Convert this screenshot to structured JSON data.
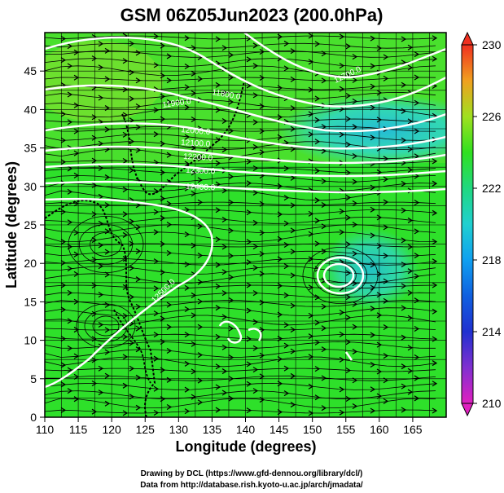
{
  "title": "GSM 06Z05Jun2023 (200.0hPa)",
  "xlabel": "Longitude (degrees)",
  "ylabel": "Latitude (degrees)",
  "credits": [
    "Drawing by DCL (https://www.gfd-dennou.org/library/dcl/)",
    "Data from http://database.rish.kyoto-u.ac.jp/arch/jmadata/"
  ],
  "map": {
    "lon_range": [
      110,
      170
    ],
    "lat_range": [
      0,
      50
    ],
    "lon_ticks": [
      "110",
      "115",
      "120",
      "125",
      "130",
      "135",
      "140",
      "145",
      "150",
      "155",
      "160",
      "165"
    ],
    "lat_ticks": [
      "0",
      "5",
      "10",
      "15",
      "20",
      "25",
      "30",
      "35",
      "40",
      "45"
    ]
  },
  "colorbar": {
    "range": [
      210,
      230
    ],
    "ticks": [
      "210",
      "214",
      "218",
      "222",
      "226",
      "230"
    ]
  },
  "contour_labels": [
    "11700.0",
    "11800.0",
    "11900.0",
    "12000.0",
    "12100.0",
    "12200.0",
    "12300.0",
    "12400.0",
    "12500.0"
  ],
  "colors": {
    "field_main": "#2ee02a",
    "field_warm": "#ff7020",
    "field_cool": "#28d8d0",
    "contour": "#ffffff",
    "streamline": "#000000"
  }
}
